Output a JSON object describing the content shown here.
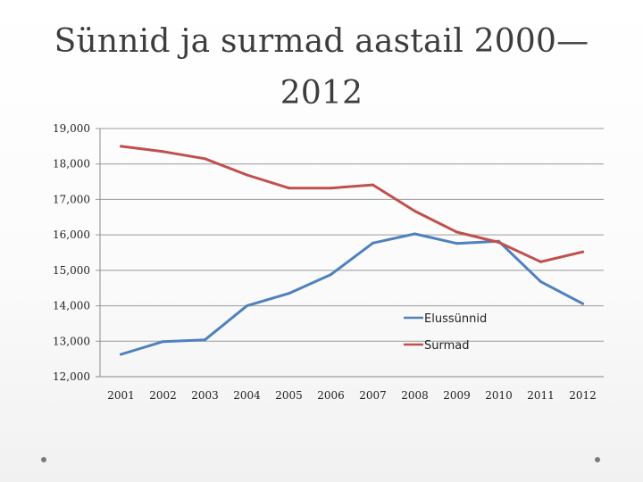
{
  "slide": {
    "title_line1": "Sünnid ja surmad aastail 2000—",
    "title_line2": "2012"
  },
  "chart_data": {
    "type": "line",
    "title": "",
    "xlabel": "",
    "ylabel": "",
    "categories": [
      "2001",
      "2002",
      "2003",
      "2004",
      "2005",
      "2006",
      "2007",
      "2008",
      "2009",
      "2010",
      "2011",
      "2012"
    ],
    "ylim": [
      12000,
      19000
    ],
    "yticks": [
      "19,000",
      "18,000",
      "17,000",
      "16,000",
      "15,000",
      "14,000",
      "13,000",
      "12,000"
    ],
    "grid": true,
    "legend_position": "right",
    "series": [
      {
        "name": "Elussünnid",
        "color": "#4f81bd",
        "values": [
          12630,
          12990,
          13040,
          14000,
          14350,
          14880,
          15770,
          16030,
          15760,
          15820,
          14680,
          14060
        ]
      },
      {
        "name": "Surmad",
        "color": "#c0504d",
        "values": [
          18500,
          18350,
          18150,
          17690,
          17320,
          17320,
          17410,
          16670,
          16080,
          15790,
          15240,
          15520
        ]
      }
    ]
  }
}
